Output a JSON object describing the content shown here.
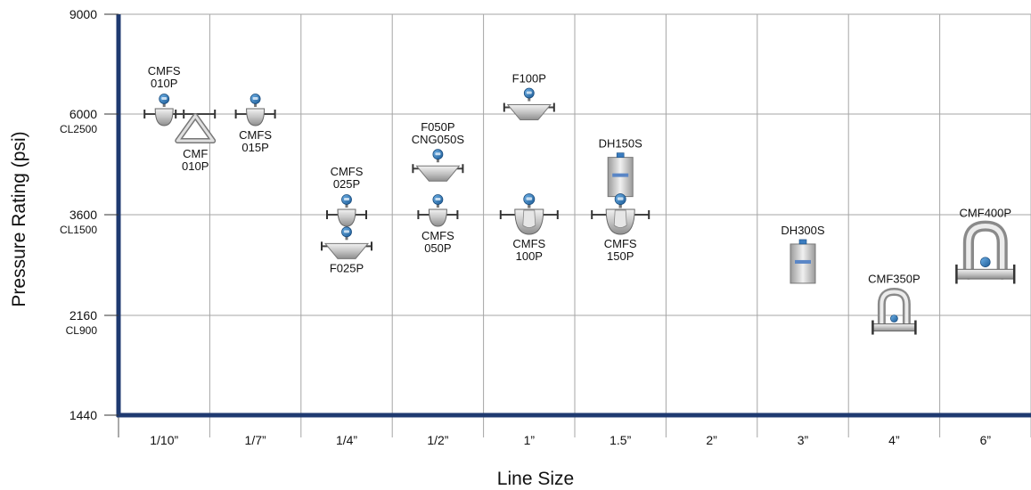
{
  "chart_data": {
    "type": "scatter",
    "xlabel": "Line Size",
    "ylabel": "Pressure Rating (psi)",
    "categories": [
      "1/10”",
      "1/7”",
      "1/4”",
      "1/2”",
      "1”",
      "1.5”",
      "2”",
      "3”",
      "4”",
      "6”"
    ],
    "y_ticks": [
      {
        "value": 9000,
        "label": "9000",
        "sub": ""
      },
      {
        "value": 6000,
        "label": "6000",
        "sub": "CL2500"
      },
      {
        "value": 3600,
        "label": "3600",
        "sub": "CL1500"
      },
      {
        "value": 2160,
        "label": "2160",
        "sub": "CL900"
      },
      {
        "value": 1440,
        "label": "1440",
        "sub": ""
      }
    ],
    "points": [
      {
        "category": "1/10”",
        "value": 6000,
        "shape": "curved",
        "label": [
          "CMFS",
          "010P"
        ],
        "label_pos": "above"
      },
      {
        "category": "1/10”",
        "value": 6000,
        "shape": "delta",
        "label": [
          "CMF",
          "010P"
        ],
        "label_pos": "below"
      },
      {
        "category": "1/7”",
        "value": 6000,
        "shape": "curved",
        "label": [
          "CMFS",
          "015P"
        ],
        "label_pos": "below"
      },
      {
        "category": "1/4”",
        "value": 3600,
        "shape": "curved",
        "label": [
          "CMFS",
          "025P"
        ],
        "label_pos": "above"
      },
      {
        "category": "1/4”",
        "value": 3150,
        "shape": "bowl",
        "label": [
          "F025P"
        ],
        "label_pos": "below"
      },
      {
        "category": "1/2”",
        "value": 4700,
        "shape": "bowl",
        "label": [
          "F050P",
          "CNG050S"
        ],
        "label_pos": "above"
      },
      {
        "category": "1/2”",
        "value": 3600,
        "shape": "curved",
        "label": [
          "CMFS",
          "050P"
        ],
        "label_pos": "below"
      },
      {
        "category": "1”",
        "value": 6200,
        "shape": "bowl",
        "label": [
          "F100P"
        ],
        "label_pos": "above"
      },
      {
        "category": "1”",
        "value": 3600,
        "shape": "curved-large",
        "label": [
          "CMFS",
          "100P"
        ],
        "label_pos": "below"
      },
      {
        "category": "1.5”",
        "value": 4500,
        "shape": "box",
        "label": [
          "DH150S"
        ],
        "label_pos": "above"
      },
      {
        "category": "1.5”",
        "value": 3600,
        "shape": "curved-large",
        "label": [
          "CMFS",
          "150P"
        ],
        "label_pos": "below"
      },
      {
        "category": "3”",
        "value": 2900,
        "shape": "box",
        "label": [
          "DH300S"
        ],
        "label_pos": "above"
      },
      {
        "category": "4”",
        "value": 2150,
        "shape": "u-tube",
        "label": [
          "CMF350P"
        ],
        "label_pos": "above"
      },
      {
        "category": "6”",
        "value": 2750,
        "shape": "u-tube-large",
        "label": [
          "CMF400P"
        ],
        "label_pos": "above"
      }
    ],
    "grid": true,
    "colors": {
      "axis": "#1f3a70",
      "grid": "#a6a6a6",
      "transmitter": "#2f78b8",
      "body": "#c8c8c8"
    }
  }
}
